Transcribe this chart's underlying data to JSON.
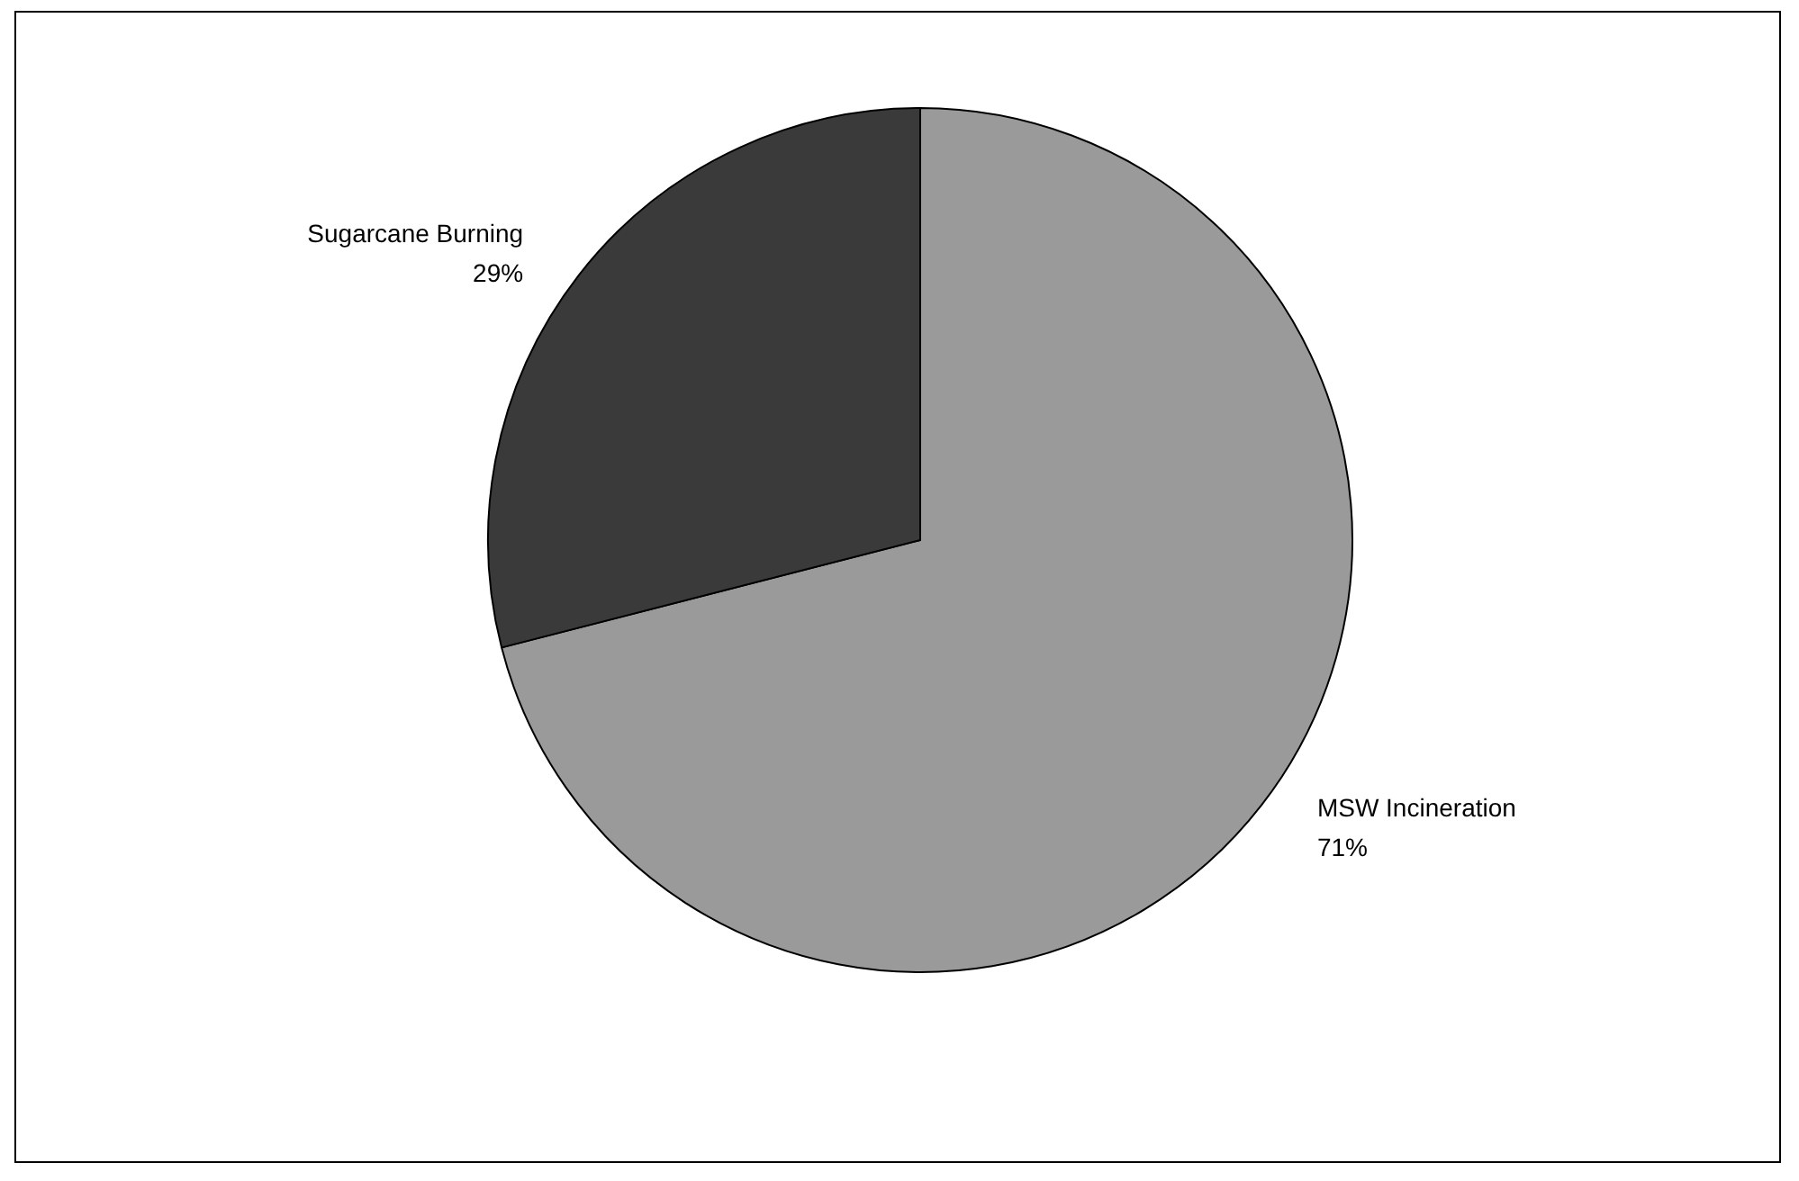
{
  "chart_data": {
    "type": "pie",
    "categories": [
      "MSW Incineration",
      "Sugarcane Burning"
    ],
    "values": [
      71,
      29
    ],
    "value_labels": [
      "71%",
      "29%"
    ],
    "colors": [
      "#9a9a9a",
      "#3a3a3a"
    ],
    "legend": false
  }
}
